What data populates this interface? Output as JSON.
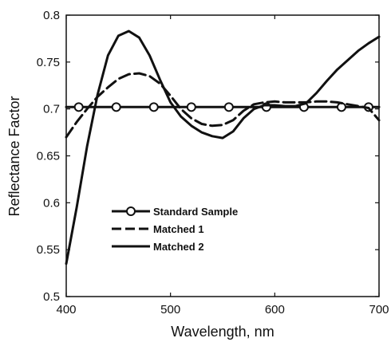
{
  "chart_data": {
    "type": "line",
    "xlabel": "Wavelength, nm",
    "ylabel": "Reflectance Factor",
    "xlim": [
      400,
      700
    ],
    "ylim": [
      0.5,
      0.8
    ],
    "x_ticks": [
      400,
      500,
      600,
      700
    ],
    "y_ticks": [
      0.5,
      0.55,
      0.6,
      0.65,
      0.7,
      0.75,
      0.8
    ],
    "x_tick_labels": [
      "400",
      "500",
      "600",
      "700"
    ],
    "y_tick_labels": [
      "0.5",
      "0.55",
      "0.6",
      "0.65",
      "0.7",
      "0.75",
      "0.8"
    ],
    "grid": false,
    "legend_position": "lower-left",
    "series": [
      {
        "name": "Standard Sample",
        "style": "solid-circles",
        "x": [
          400,
          700
        ],
        "y": [
          0.702,
          0.702
        ],
        "markers_x": [
          412,
          448,
          484,
          520,
          556,
          592,
          628,
          664,
          690
        ]
      },
      {
        "name": "Matched 1",
        "style": "dashed",
        "x": [
          400,
          410,
          420,
          430,
          440,
          450,
          460,
          470,
          480,
          490,
          500,
          510,
          520,
          530,
          540,
          550,
          560,
          570,
          580,
          590,
          600,
          610,
          620,
          630,
          640,
          650,
          660,
          670,
          680,
          690,
          700
        ],
        "y": [
          0.67,
          0.686,
          0.7,
          0.713,
          0.723,
          0.732,
          0.737,
          0.738,
          0.735,
          0.727,
          0.714,
          0.7,
          0.69,
          0.684,
          0.682,
          0.683,
          0.688,
          0.698,
          0.705,
          0.707,
          0.708,
          0.707,
          0.707,
          0.707,
          0.708,
          0.708,
          0.707,
          0.705,
          0.703,
          0.701,
          0.688
        ]
      },
      {
        "name": "Matched 2",
        "style": "solid",
        "x": [
          400,
          410,
          420,
          430,
          440,
          450,
          460,
          470,
          480,
          490,
          500,
          510,
          520,
          530,
          540,
          550,
          560,
          570,
          580,
          590,
          600,
          610,
          620,
          630,
          640,
          650,
          660,
          670,
          680,
          690,
          700
        ],
        "y": [
          0.535,
          0.595,
          0.66,
          0.715,
          0.757,
          0.778,
          0.783,
          0.776,
          0.757,
          0.731,
          0.707,
          0.692,
          0.682,
          0.675,
          0.671,
          0.669,
          0.676,
          0.69,
          0.7,
          0.704,
          0.704,
          0.703,
          0.703,
          0.706,
          0.717,
          0.73,
          0.742,
          0.752,
          0.762,
          0.77,
          0.777
        ]
      }
    ]
  }
}
